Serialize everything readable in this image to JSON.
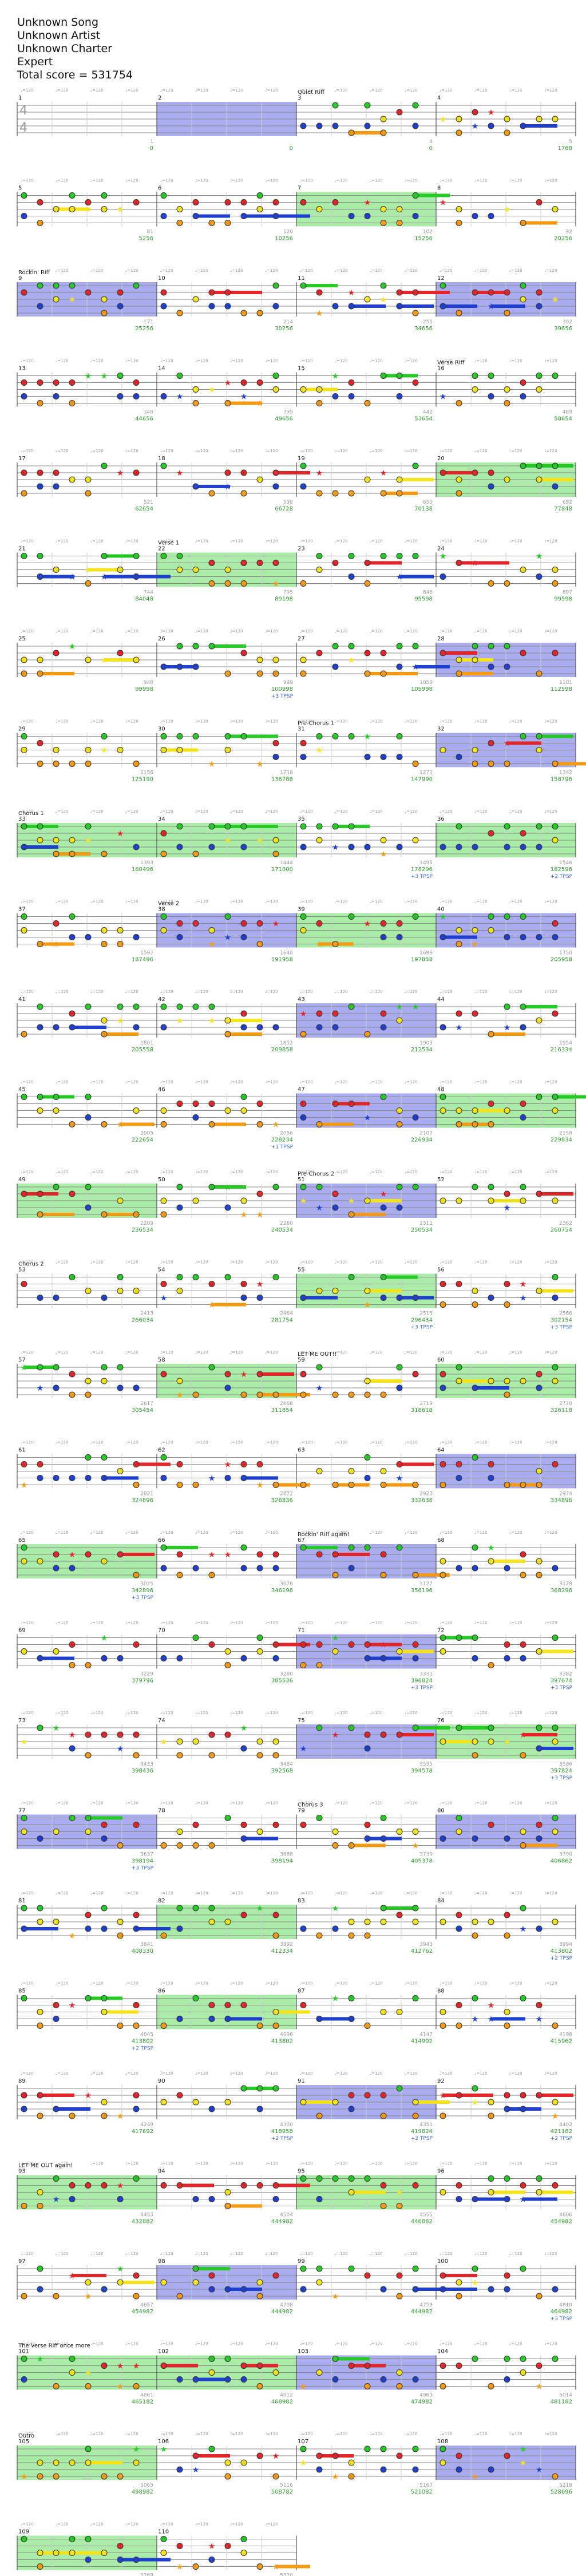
{
  "header": {
    "song": "Unknown Song",
    "artist": "Unknown Artist",
    "charter": "Unknown Charter",
    "difficulty": "Expert",
    "total_score": "Total score = 531754"
  },
  "time_signature": "4/4",
  "colors": {
    "green_note": "#27c927",
    "red_note": "#e0262a",
    "yellow_note": "#f3e31c",
    "blue_note": "#1f3fcf",
    "orange_note": "#f39a12",
    "star_power_region": "#7ce07a",
    "solo_region": "#6f77e6",
    "measure_number": "#e0262a",
    "score_value": "#2d9c2d",
    "multiplier_value": "#3a6ad8"
  },
  "sections": [
    {
      "measure": 3,
      "label": "Quiet Riff"
    },
    {
      "measure": 9,
      "label": "Rockin' Riff"
    },
    {
      "measure": 16,
      "label": "Verse Riff"
    },
    {
      "measure": 22,
      "label": "Verse 1"
    },
    {
      "measure": 31,
      "label": "Pre-Chorus 1"
    },
    {
      "measure": 33,
      "label": "Chorus 1"
    },
    {
      "measure": 38,
      "label": "Verse 2"
    },
    {
      "measure": 51,
      "label": "Pre-Chorus 2"
    },
    {
      "measure": 53,
      "label": "Chorus 2"
    },
    {
      "measure": 59,
      "label": "LET ME OUT!!"
    },
    {
      "measure": 67,
      "label": "Rockin' Riff again!"
    },
    {
      "measure": 79,
      "label": "Chorus 3"
    },
    {
      "measure": 93,
      "label": "LET ME OUT again!"
    },
    {
      "measure": 101,
      "label": "The Verse Riff once more"
    },
    {
      "measure": 105,
      "label": "Outro"
    }
  ],
  "rows": [
    {
      "measures": [
        1,
        2,
        3,
        4
      ],
      "notes": [
        "1",
        "",
        "4",
        "5"
      ],
      "scores": [
        "0",
        "0",
        "0",
        "1768"
      ],
      "mult": [
        "",
        "",
        "",
        ""
      ]
    },
    {
      "measures": [
        5,
        6,
        7,
        8
      ],
      "notes": [
        "81",
        "120",
        "102",
        "92"
      ],
      "scores": [
        "5256",
        "10256",
        "15256",
        "20256"
      ],
      "mult": [
        "",
        "",
        "",
        ""
      ]
    },
    {
      "measures": [
        9,
        10,
        11,
        12
      ],
      "notes": [
        "171",
        "214",
        "255",
        "302"
      ],
      "scores": [
        "25256",
        "30256",
        "34656",
        "39656"
      ],
      "mult": [
        "",
        "",
        "",
        ""
      ]
    },
    {
      "measures": [
        13,
        14,
        15,
        16
      ],
      "notes": [
        "348",
        "395",
        "442",
        "489"
      ],
      "scores": [
        "44656",
        "49656",
        "53654",
        "58654"
      ],
      "mult": [
        "",
        "",
        "",
        ""
      ]
    },
    {
      "measures": [
        17,
        18,
        19,
        20
      ],
      "notes": [
        "521",
        "598",
        "650",
        "692"
      ],
      "scores": [
        "62654",
        "66728",
        "70138",
        "77848"
      ],
      "mult": [
        "",
        "",
        "",
        ""
      ]
    },
    {
      "measures": [
        21,
        22,
        23,
        24
      ],
      "notes": [
        "744",
        "795",
        "846",
        "897"
      ],
      "scores": [
        "84048",
        "89198",
        "95598",
        "99598"
      ],
      "mult": [
        "",
        "",
        "",
        ""
      ]
    },
    {
      "measures": [
        25,
        26,
        27,
        28
      ],
      "notes": [
        "948",
        "999",
        "1050",
        "1101"
      ],
      "scores": [
        "99998",
        "100998",
        "105998",
        "112598"
      ],
      "mult": [
        "",
        "+3 TPSP",
        "",
        ""
      ]
    },
    {
      "measures": [
        29,
        30,
        31,
        32
      ],
      "notes": [
        "1156",
        "1218",
        "1271",
        "1342"
      ],
      "scores": [
        "125190",
        "136788",
        "147990",
        "158796"
      ],
      "mult": [
        "",
        "",
        "",
        ""
      ]
    },
    {
      "measures": [
        33,
        34,
        35,
        36
      ],
      "notes": [
        "1393",
        "1444",
        "1495",
        "1546"
      ],
      "scores": [
        "160496",
        "171000",
        "176296",
        "182596"
      ],
      "mult": [
        "",
        "",
        "+3 TPSP",
        "+2 TPSP"
      ]
    },
    {
      "measures": [
        37,
        38,
        39,
        40
      ],
      "notes": [
        "1597",
        "1648",
        "1699",
        "1750"
      ],
      "scores": [
        "187496",
        "191958",
        "197858",
        "205958"
      ],
      "mult": [
        "",
        "",
        "",
        ""
      ]
    },
    {
      "measures": [
        41,
        42,
        43,
        44
      ],
      "notes": [
        "1801",
        "1852",
        "1903",
        "1954"
      ],
      "scores": [
        "205558",
        "209858",
        "212534",
        "216334"
      ],
      "mult": [
        "",
        "",
        "",
        ""
      ]
    },
    {
      "measures": [
        45,
        46,
        47,
        48
      ],
      "notes": [
        "2005",
        "2056",
        "2107",
        "2158"
      ],
      "scores": [
        "222654",
        "228234",
        "226934",
        "229834"
      ],
      "mult": [
        "",
        "+1 TPSP",
        "",
        ""
      ]
    },
    {
      "measures": [
        49,
        50,
        51,
        52
      ],
      "notes": [
        "2209",
        "2260",
        "2311",
        "2362"
      ],
      "scores": [
        "236534",
        "240534",
        "250534",
        "260754"
      ],
      "mult": [
        "",
        "",
        "",
        ""
      ]
    },
    {
      "measures": [
        53,
        54,
        55,
        56
      ],
      "notes": [
        "2413",
        "2464",
        "2515",
        "2566"
      ],
      "scores": [
        "266034",
        "281754",
        "296434",
        "302154"
      ],
      "mult": [
        "",
        "",
        "+3 TPSP",
        "+3 TPSP"
      ]
    },
    {
      "measures": [
        57,
        58,
        59,
        60
      ],
      "notes": [
        "2617",
        "2668",
        "2719",
        "2770"
      ],
      "scores": [
        "305454",
        "311854",
        "318618",
        "326118"
      ],
      "mult": [
        "",
        "",
        "",
        ""
      ]
    },
    {
      "measures": [
        61,
        62,
        63,
        64
      ],
      "notes": [
        "2821",
        "2872",
        "2923",
        "2974"
      ],
      "scores": [
        "324896",
        "326836",
        "332636",
        "334896"
      ],
      "mult": [
        "",
        "",
        "",
        ""
      ]
    },
    {
      "measures": [
        65,
        66,
        67,
        68
      ],
      "notes": [
        "3025",
        "3076",
        "3127",
        "3178"
      ],
      "scores": [
        "342896",
        "346196",
        "356196",
        "368296"
      ],
      "mult": [
        "+3 TPSP",
        "",
        "",
        ""
      ]
    },
    {
      "measures": [
        69,
        70,
        71,
        72
      ],
      "notes": [
        "3229",
        "3280",
        "3331",
        "3382"
      ],
      "scores": [
        "379796",
        "385536",
        "396824",
        "397674"
      ],
      "mult": [
        "",
        "",
        "+3 TPSP",
        "+3 TPSP"
      ]
    },
    {
      "measures": [
        73,
        74,
        75,
        76
      ],
      "notes": [
        "3433",
        "3484",
        "3535",
        "3586"
      ],
      "scores": [
        "398436",
        "392568",
        "394578",
        "397824"
      ],
      "mult": [
        "",
        "",
        "",
        "+3 TPSP"
      ]
    },
    {
      "measures": [
        77,
        78,
        79,
        80
      ],
      "notes": [
        "3637",
        "3688",
        "3739",
        "3790"
      ],
      "scores": [
        "398194",
        "398194",
        "405378",
        "406862"
      ],
      "mult": [
        "+3 TPSP",
        "",
        "",
        ""
      ]
    },
    {
      "measures": [
        81,
        82,
        83,
        84
      ],
      "notes": [
        "3841",
        "3892",
        "3943",
        "3994"
      ],
      "scores": [
        "408330",
        "412334",
        "412762",
        "413802"
      ],
      "mult": [
        "",
        "",
        "",
        "+2 TPSP"
      ]
    },
    {
      "measures": [
        85,
        86,
        87,
        88
      ],
      "notes": [
        "4045",
        "4096",
        "4147",
        "4198"
      ],
      "scores": [
        "413802",
        "413802",
        "414902",
        "415962"
      ],
      "mult": [
        "+2 TPSP",
        "",
        "",
        ""
      ]
    },
    {
      "measures": [
        89,
        90,
        91,
        92
      ],
      "notes": [
        "4249",
        "4300",
        "4351",
        "4402"
      ],
      "scores": [
        "417692",
        "418958",
        "419824",
        "421182"
      ],
      "mult": [
        "",
        "+2 TPSP",
        "+2 TPSP",
        "+2 TPSP"
      ]
    },
    {
      "measures": [
        93,
        94,
        95,
        96
      ],
      "notes": [
        "4453",
        "4504",
        "4555",
        "4606"
      ],
      "scores": [
        "432882",
        "444982",
        "446882",
        "454982"
      ],
      "mult": [
        "",
        "",
        "",
        ""
      ]
    },
    {
      "measures": [
        97,
        98,
        99,
        100
      ],
      "notes": [
        "4657",
        "4708",
        "4759",
        "4810"
      ],
      "scores": [
        "454982",
        "444982",
        "444982",
        "464982"
      ],
      "mult": [
        "",
        "",
        "",
        "+3 TPSP"
      ]
    },
    {
      "measures": [
        101,
        102,
        103,
        104
      ],
      "notes": [
        "4861",
        "4912",
        "4963",
        "5014"
      ],
      "scores": [
        "465182",
        "468982",
        "474982",
        "481182"
      ],
      "mult": [
        "",
        "",
        "",
        ""
      ]
    },
    {
      "measures": [
        105,
        106,
        107,
        108
      ],
      "notes": [
        "5065",
        "5116",
        "5167",
        "5218"
      ],
      "scores": [
        "498982",
        "508782",
        "521082",
        "528696"
      ],
      "mult": [
        "",
        "",
        "",
        ""
      ]
    },
    {
      "measures": [
        109,
        110
      ],
      "notes": [
        "5269",
        "5320"
      ],
      "scores": [
        "531498",
        "531754"
      ],
      "mult": [
        "",
        ""
      ]
    }
  ]
}
